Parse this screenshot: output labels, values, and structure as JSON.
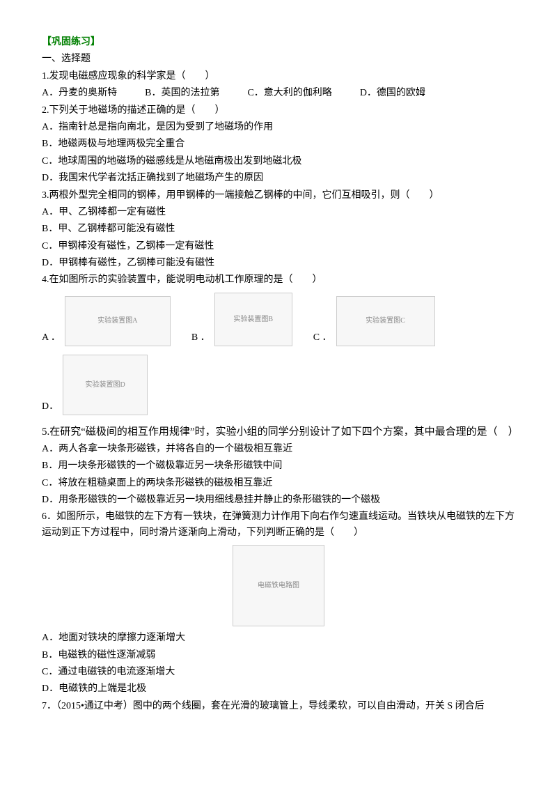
{
  "header": {
    "title": "【巩固练习】"
  },
  "section1": {
    "heading": "一、选择题"
  },
  "q1": {
    "stem": "1.发现电磁感应现象的科学家是（　　）",
    "A": "A．丹麦的奥斯特",
    "B": "B．英国的法拉第",
    "C": "C．意大利的伽利略",
    "D": "D．德国的欧姆"
  },
  "q2": {
    "stem": "2.下列关于地磁场的描述正确的是（　　）",
    "A": "A．指南针总是指向南北，是因为受到了地磁场的作用",
    "B": "B．地磁两极与地理两极完全重合",
    "C": "C．地球周围的地磁场的磁感线是从地磁南极出发到地磁北极",
    "D": "D．我国宋代学者沈括正确找到了地磁场产生的原因"
  },
  "q3": {
    "stem": "3.两根外型完全相同的钢棒，用甲钢棒的一端接触乙钢棒的中间，它们互相吸引，则（　　）",
    "A": "A．甲、乙钢棒都一定有磁性",
    "B": "B．甲、乙钢棒都可能没有磁性",
    "C": "C．甲钢棒没有磁性，乙钢棒一定有磁性",
    "D": "D．甲钢棒有磁性，乙钢棒可能没有磁性"
  },
  "q4": {
    "stem": "4.在如图所示的实验装置中，能说明电动机工作原理的是（　　）",
    "labelA": "A ．",
    "labelB": "B ．",
    "labelC": "C ．",
    "labelD": "D．",
    "figA_alt": "实验装置图A",
    "figB_alt": "实验装置图B",
    "figC_alt": "实验装置图C",
    "figD_alt": "实验装置图D"
  },
  "q5": {
    "stem": "5.在研究“磁极间的相互作用规律”时，实验小组的同学分别设计了如下四个方案，其中最合理的是（　）",
    "A": "A．两人各拿一块条形磁铁，并将各自的一个磁极相互靠近",
    "B": "B．用一块条形磁铁的一个磁极靠近另一块条形磁铁中间",
    "C": "C．将放在粗糙桌面上的两块条形磁铁的磁极相互靠近",
    "D": "D．用条形磁铁的一个磁极靠近另一块用细线悬挂并静止的条形磁铁的一个磁极"
  },
  "q6": {
    "stem": "6．如图所示，电磁铁的左下方有一铁块，在弹簧测力计作用下向右作匀速直线运动。当铁块从电磁铁的左下方运动到正下方过程中，同时滑片逐渐向上滑动，下列判断正确的是（　　）",
    "fig_alt": "电磁铁电路图",
    "A": "A．地面对铁块的摩擦力逐渐增大",
    "B": "B．电磁铁的磁性逐渐减弱",
    "C": "C．通过电磁铁的电流逐渐增大",
    "D": "D．电磁铁的上端是北极"
  },
  "q7": {
    "stem": "7．（2015•通辽中考）图中的两个线圈，套在光滑的玻璃管上，导线柔软，可以自由滑动，开关 S 闭合后"
  }
}
